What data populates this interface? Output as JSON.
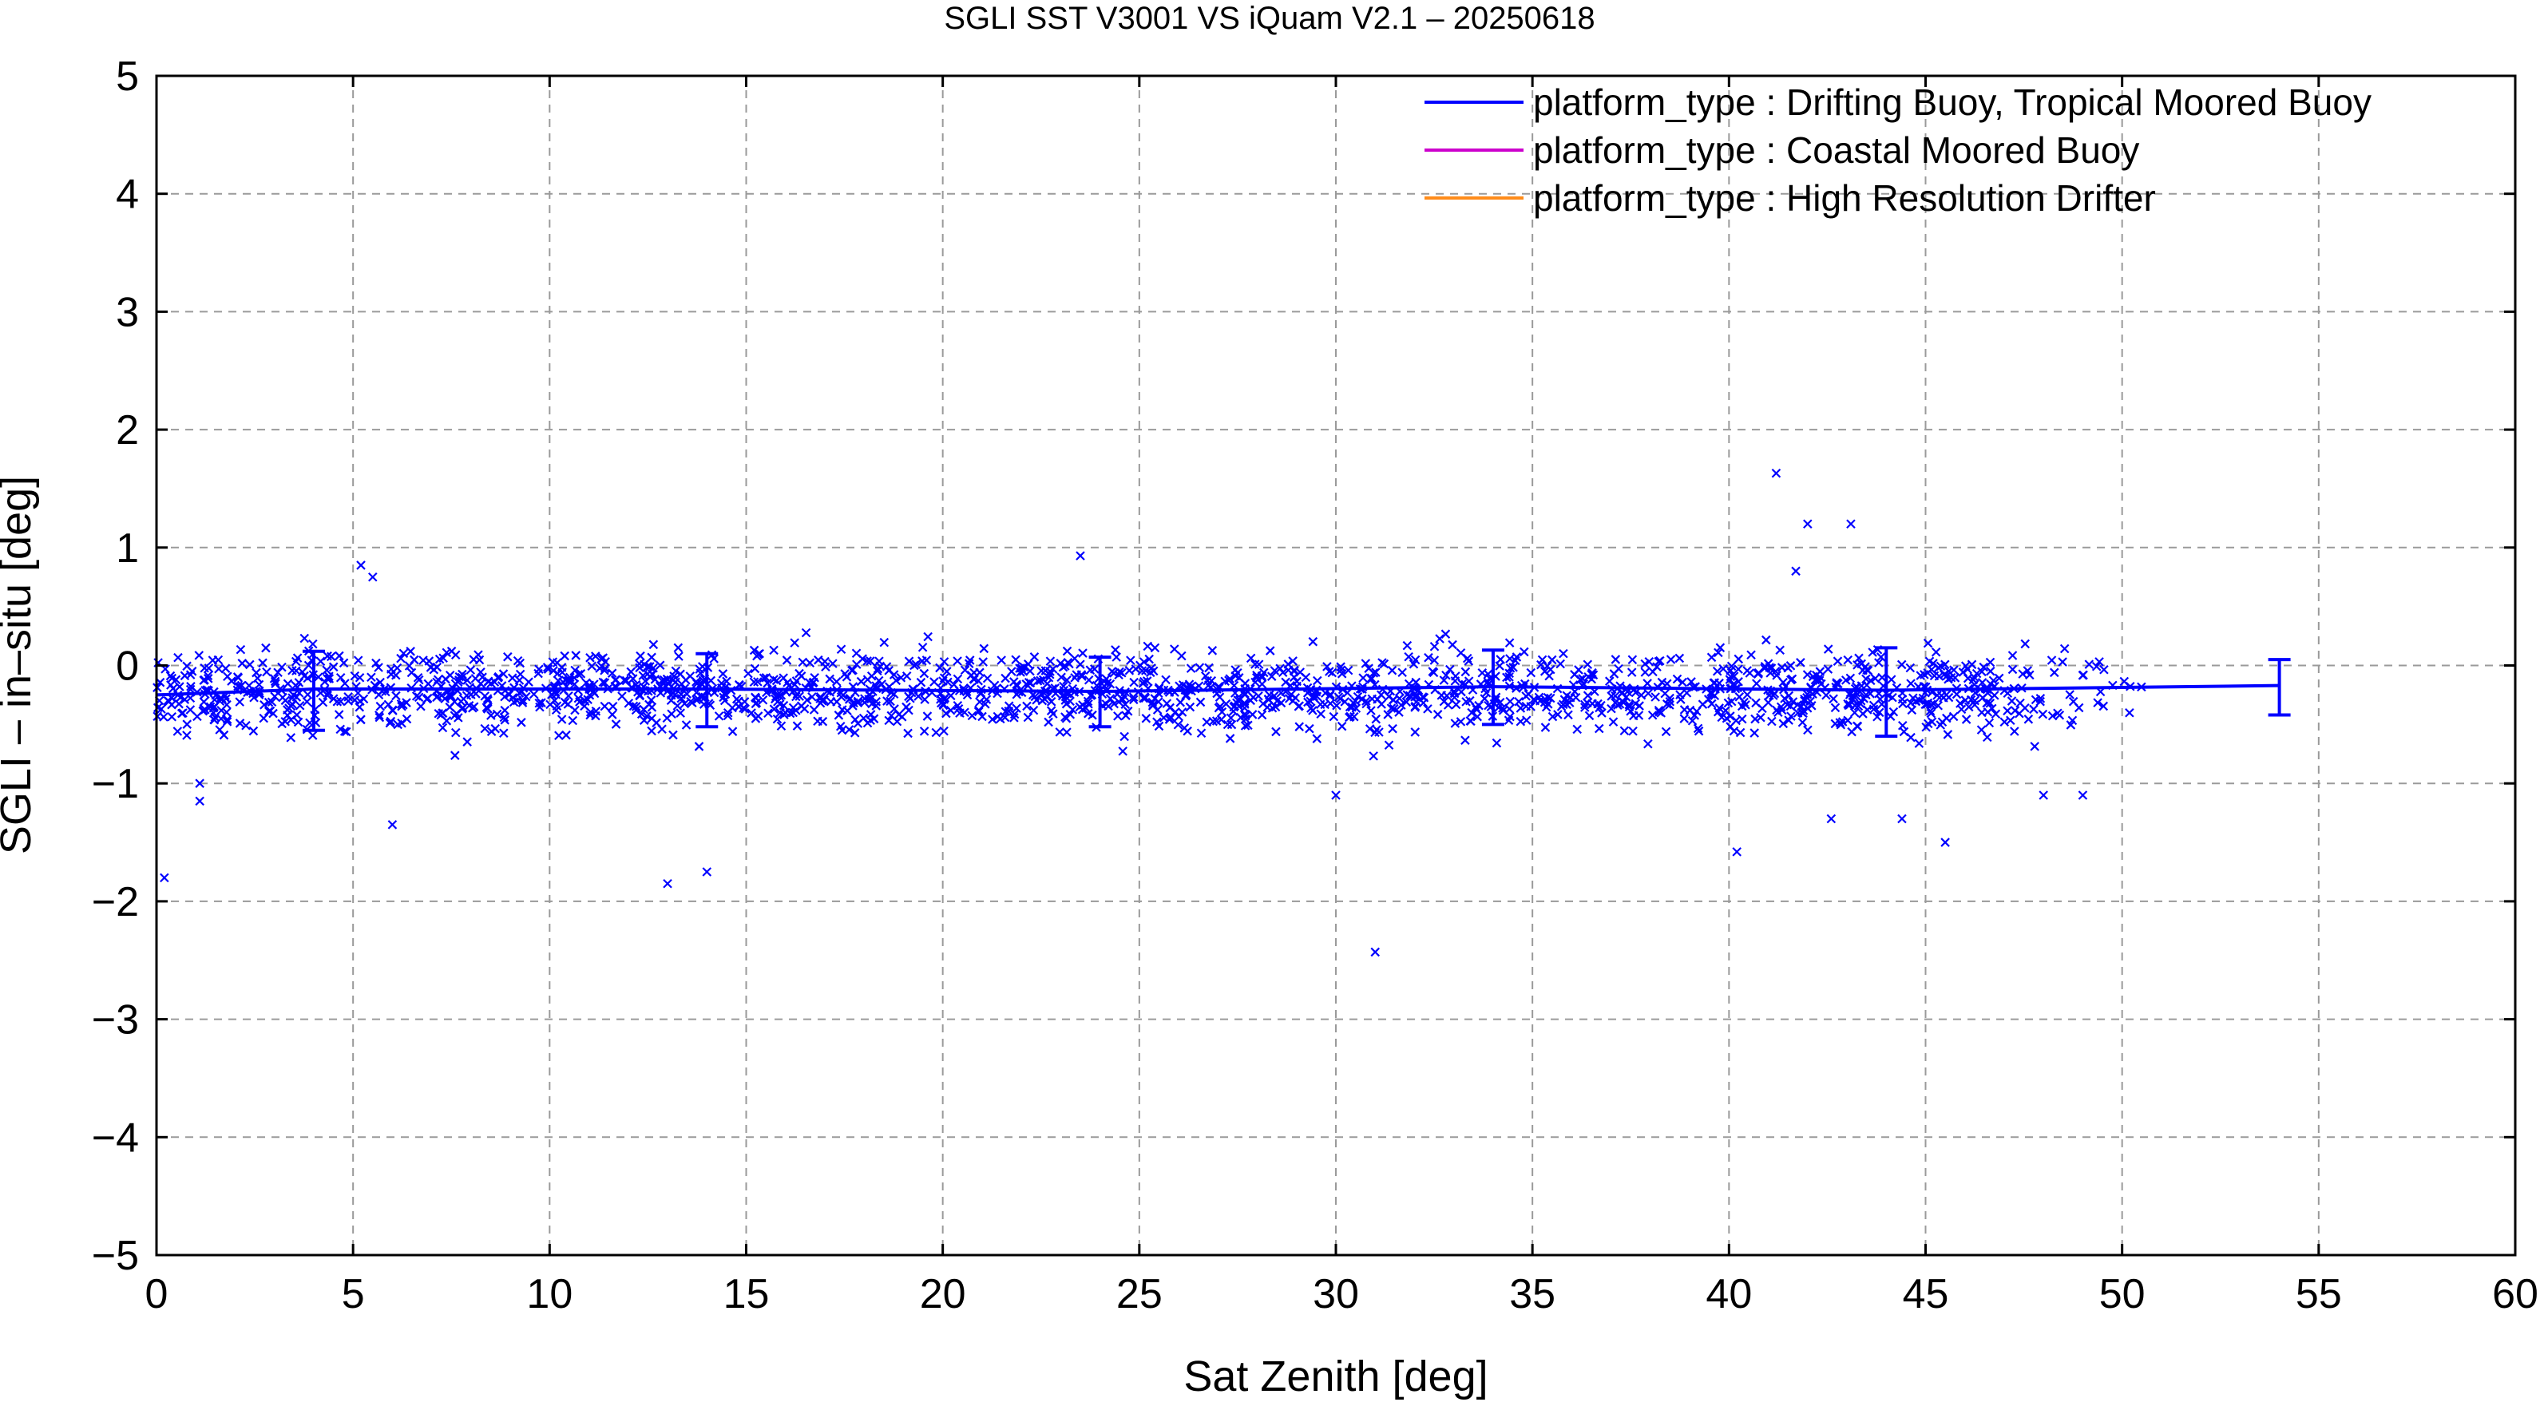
{
  "chart_data": {
    "type": "scatter",
    "title": "SGLI SST V3001 VS iQuam V2.1  – 20250618",
    "xlabel": "Sat Zenith [deg]",
    "ylabel": "SGLI – in–situ [deg]",
    "xlim": [
      0,
      60
    ],
    "ylim": [
      -5,
      5
    ],
    "x_ticks": [
      "0",
      "5",
      "10",
      "15",
      "20",
      "25",
      "30",
      "35",
      "40",
      "45",
      "50",
      "55",
      "60"
    ],
    "y_ticks": [
      "−5",
      "−4",
      "−3",
      "−2",
      "−1",
      "0",
      "1",
      "2",
      "3",
      "4",
      "5"
    ],
    "grid": true,
    "legend_position": "top-right",
    "legend": [
      {
        "label": "platform_type : Drifting Buoy, Tropical Moored Buoy",
        "color": "#0000ff"
      },
      {
        "label": "platform_type : Coastal Moored Buoy",
        "color": "#cc00cc"
      },
      {
        "label": "platform_type : High Resolution Drifter",
        "color": "#ff8c1a"
      }
    ],
    "mean_line": {
      "series": "platform_type : Drifting Buoy, Tropical Moored Buoy",
      "color": "#0000ff",
      "x": [
        0,
        4,
        14,
        24,
        34,
        44,
        54
      ],
      "y": [
        -0.25,
        -0.2,
        -0.2,
        -0.22,
        -0.18,
        -0.21,
        -0.17
      ]
    },
    "error_bars": {
      "color": "#0000ff",
      "x": [
        4,
        14,
        24,
        34,
        44,
        54
      ],
      "mean": [
        -0.2,
        -0.2,
        -0.22,
        -0.18,
        -0.21,
        -0.17
      ],
      "low": [
        -0.55,
        -0.52,
        -0.52,
        -0.5,
        -0.6,
        -0.42
      ],
      "high": [
        0.12,
        0.1,
        0.07,
        0.13,
        0.15,
        0.05
      ]
    },
    "outliers": {
      "color": "#0000ff",
      "x": [
        0.2,
        1.1,
        1.1,
        5.2,
        5.5,
        6.0,
        13.0,
        14.0,
        23.5,
        30.0,
        31.0,
        40.2,
        41.2,
        41.7,
        42.0,
        42.6,
        43.1,
        44.4,
        45.5,
        48.0,
        49.0
      ],
      "y": [
        -1.8,
        -1.0,
        -1.15,
        0.85,
        0.75,
        -1.35,
        -1.85,
        -1.75,
        0.93,
        -1.1,
        -2.43,
        -1.58,
        1.63,
        0.8,
        1.2,
        -1.3,
        1.2,
        -1.3,
        -1.5,
        -1.1,
        -1.1
      ]
    },
    "scatter_density": {
      "color": "#0000ff",
      "x_range": [
        0,
        50.5
      ],
      "y_center": -0.22,
      "y_spread_typical": 0.45,
      "marker": "x"
    }
  }
}
